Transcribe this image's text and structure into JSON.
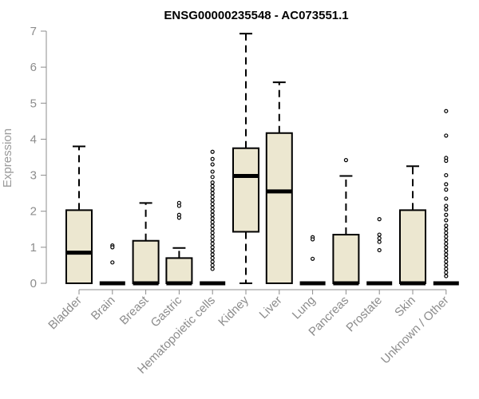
{
  "chart_data": {
    "type": "boxplot",
    "title": "ENSG00000235548 - AC073551.1",
    "xlabel": "",
    "ylabel": "Expression",
    "ylim": [
      0,
      7
    ],
    "yticks": [
      0,
      1,
      2,
      3,
      4,
      5,
      6,
      7
    ],
    "box_color": "#ece7d0",
    "categories": [
      "Bladder",
      "Brain",
      "Breast",
      "Gastric",
      "Hematopoietic cells",
      "Kidney",
      "Liver",
      "Lung",
      "Pancreas",
      "Prostate",
      "Skin",
      "Unknown / Other"
    ],
    "boxes": [
      {
        "q1": 0,
        "median": 0.85,
        "q3": 2.03,
        "whisker_low": 0,
        "whisker_high": 3.8,
        "outliers": []
      },
      {
        "q1": 0,
        "median": 0,
        "q3": 0,
        "whisker_low": 0,
        "whisker_high": 0,
        "outliers": [
          1.05,
          1.0,
          0.58
        ]
      },
      {
        "q1": 0,
        "median": 0,
        "q3": 1.18,
        "whisker_low": 0,
        "whisker_high": 2.23,
        "outliers": []
      },
      {
        "q1": 0,
        "median": 0,
        "q3": 0.7,
        "whisker_low": 0,
        "whisker_high": 0.98,
        "outliers": [
          2.23,
          2.15,
          1.9,
          1.82
        ]
      },
      {
        "q1": 0,
        "median": 0,
        "q3": 0,
        "whisker_low": 0,
        "whisker_high": 0,
        "outliers": [
          3.65,
          3.45,
          3.3,
          3.1,
          2.95,
          2.8,
          2.7,
          2.6,
          2.5,
          2.4,
          2.3,
          2.2,
          2.1,
          2.0,
          1.9,
          1.8,
          1.7,
          1.6,
          1.5,
          1.4,
          1.3,
          1.2,
          1.1,
          1.0,
          0.9,
          0.8,
          0.7,
          0.6,
          0.5,
          0.4
        ]
      },
      {
        "q1": 1.43,
        "median": 2.98,
        "q3": 3.75,
        "whisker_low": 0,
        "whisker_high": 6.93,
        "outliers": []
      },
      {
        "q1": 0,
        "median": 2.55,
        "q3": 4.17,
        "whisker_low": 0,
        "whisker_high": 5.58,
        "outliers": []
      },
      {
        "q1": 0,
        "median": 0,
        "q3": 0,
        "whisker_low": 0,
        "whisker_high": 0,
        "outliers": [
          1.28,
          1.22,
          0.68
        ]
      },
      {
        "q1": 0,
        "median": 0,
        "q3": 1.35,
        "whisker_low": 0,
        "whisker_high": 2.98,
        "outliers": [
          3.42
        ]
      },
      {
        "q1": 0,
        "median": 0,
        "q3": 0,
        "whisker_low": 0,
        "whisker_high": 0,
        "outliers": [
          1.78,
          1.35,
          1.25,
          1.15,
          0.92
        ]
      },
      {
        "q1": 0,
        "median": 0,
        "q3": 2.03,
        "whisker_low": 0,
        "whisker_high": 3.25,
        "outliers": []
      },
      {
        "q1": 0,
        "median": 0,
        "q3": 0,
        "whisker_low": 0,
        "whisker_high": 0,
        "outliers": [
          4.78,
          4.1,
          3.48,
          3.4,
          3.0,
          2.75,
          2.6,
          2.35,
          2.15,
          2.05,
          1.9,
          1.75,
          1.6,
          1.5,
          1.4,
          1.3,
          1.2,
          1.1,
          1.0,
          0.9,
          0.8,
          0.7,
          0.6,
          0.5,
          0.4,
          0.3,
          0.2
        ]
      }
    ]
  }
}
